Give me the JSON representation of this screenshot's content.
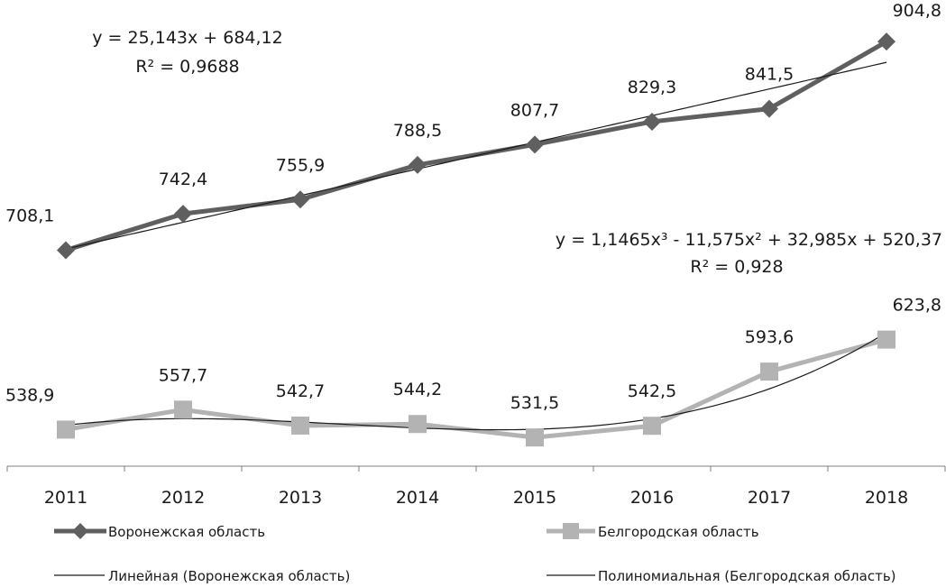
{
  "chart_data": {
    "type": "line",
    "categories": [
      "2011",
      "2012",
      "2013",
      "2014",
      "2015",
      "2016",
      "2017",
      "2018"
    ],
    "series": [
      {
        "name": "Воронежская область",
        "values": [
          708.1,
          742.4,
          755.9,
          788.5,
          807.7,
          829.3,
          841.5,
          904.8
        ],
        "labels": [
          "708,1",
          "742,4",
          "755,9",
          "788,5",
          "807,7",
          "829,3",
          "841,5",
          "904,8"
        ],
        "color": "#5f5f5f",
        "marker": "diamond"
      },
      {
        "name": "Белгородская область",
        "values": [
          538.9,
          557.7,
          542.7,
          544.2,
          531.5,
          542.5,
          593.6,
          623.8
        ],
        "labels": [
          "538,9",
          "557,7",
          "542,7",
          "544,2",
          "531,5",
          "542,5",
          "593,6",
          "623,8"
        ],
        "color": "#b3b3b3",
        "marker": "square"
      }
    ],
    "trendlines": [
      {
        "name": "Линейная (Воронежская область)",
        "type": "linear",
        "coefficients": [
          25.143,
          684.12
        ],
        "equation": "y = 25,143x + 684,12",
        "r2": "R² = 0,9688",
        "color": "#1a1a1a"
      },
      {
        "name": "Полиномиальная (Белгородская область)",
        "type": "polynomial",
        "coefficients": [
          1.1465,
          -11.575,
          32.985,
          520.37
        ],
        "equation": "y = 1,1465x³ - 11,575x² + 32,985x + 520,37",
        "r2": "R² = 0,928",
        "color": "#1a1a1a"
      }
    ],
    "title": "",
    "xlabel": "",
    "ylabel": "",
    "ylim": [
      500,
      920
    ],
    "y_axis_visible": false,
    "grid": false,
    "legend_position": "bottom"
  }
}
